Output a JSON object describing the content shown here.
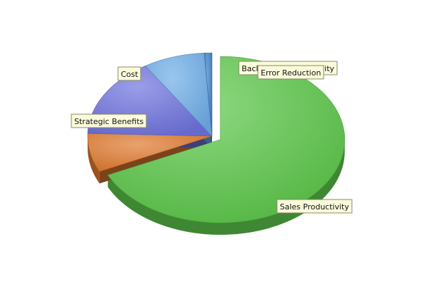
{
  "chart_data": {
    "type": "pie",
    "style": "3d-exploded",
    "legend": "none",
    "slices": [
      {
        "label": "Sales Productivity",
        "value": 68.0,
        "color": "#5cc74a"
      },
      {
        "label": "Strategic Benefits",
        "value": 7.5,
        "color": "#e07a30"
      },
      {
        "label": "Cost",
        "value": 15.5,
        "color": "#6f73de"
      },
      {
        "label": "Back Office Productivity",
        "value": 8.0,
        "color": "#6faee8"
      },
      {
        "label": "Error Reduction",
        "value": 1.0,
        "color": "#3d7fc6"
      }
    ]
  }
}
